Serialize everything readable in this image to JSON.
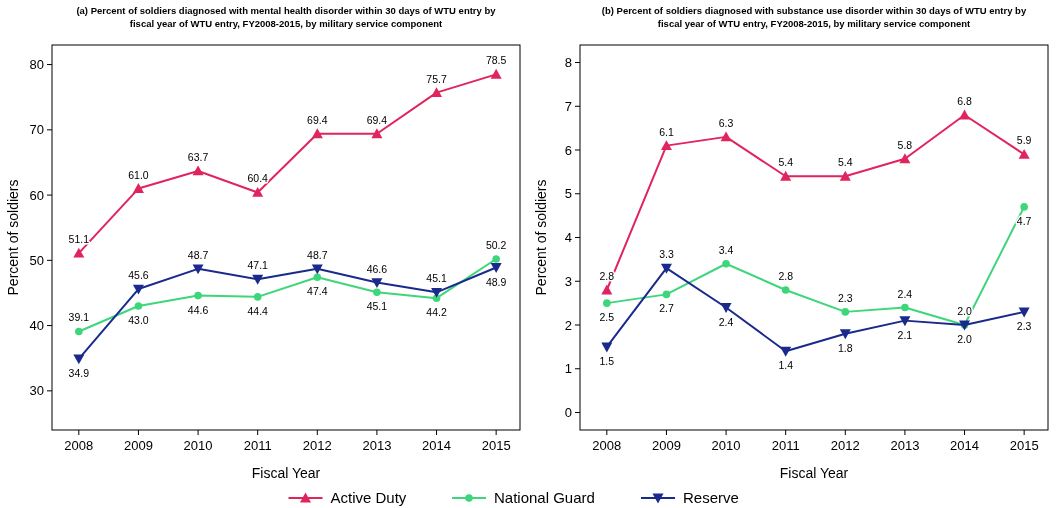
{
  "chart_data": [
    {
      "type": "line",
      "title": "(a) Percent of soldiers diagnosed with mental health disorder within 30 days of WTU entry by fiscal year of WTU entry, FY2008-2015, by military service component",
      "xlabel": "Fiscal Year",
      "ylabel": "Percent of soldiers",
      "x": [
        2008,
        2009,
        2010,
        2011,
        2012,
        2013,
        2014,
        2015
      ],
      "xlim": [
        2007.55,
        2015.4
      ],
      "xticks": [
        2008,
        2009,
        2010,
        2011,
        2012,
        2013,
        2014,
        2015
      ],
      "ylim": [
        24,
        83
      ],
      "yticks": [
        30,
        40,
        50,
        60,
        70,
        80
      ],
      "legend": "bottom",
      "series": [
        {
          "name": "Active Duty",
          "color": "#e0245e",
          "marker": "triangle",
          "values": [
            51.1,
            61.0,
            63.7,
            60.4,
            69.4,
            69.4,
            75.7,
            78.5
          ],
          "value_labels": [
            "51.1",
            "61.0",
            "63.7",
            "60.4",
            "69.4",
            "69.4",
            "75.7",
            "78.5"
          ]
        },
        {
          "name": "National Guard",
          "color": "#3dd67a",
          "marker": "circle",
          "values": [
            39.1,
            43.0,
            44.6,
            44.4,
            47.4,
            45.1,
            44.2,
            50.2
          ],
          "value_labels": [
            "39.1",
            "43.0",
            "44.6",
            "44.4",
            "47.4",
            "45.1",
            "44.2",
            "50.2"
          ]
        },
        {
          "name": "Reserve",
          "color": "#1a2a8c",
          "marker": "triangle-down",
          "values": [
            34.9,
            45.6,
            48.7,
            47.1,
            48.7,
            46.6,
            45.1,
            48.9
          ],
          "value_labels": [
            "34.9",
            "45.6",
            "48.7",
            "47.1",
            "48.7",
            "46.6",
            "45.1",
            "48.9"
          ]
        }
      ]
    },
    {
      "type": "line",
      "title": "(b) Percent of soldiers diagnosed with substance use disorder within 30 days of WTU entry by fiscal year of WTU entry, FY2008-2015, by military service component",
      "xlabel": "Fiscal Year",
      "ylabel": "Percent of soldiers",
      "x": [
        2008,
        2009,
        2010,
        2011,
        2012,
        2013,
        2014,
        2015
      ],
      "xlim": [
        2007.55,
        2015.4
      ],
      "xticks": [
        2008,
        2009,
        2010,
        2011,
        2012,
        2013,
        2014,
        2015
      ],
      "ylim": [
        -0.4,
        8.4
      ],
      "yticks": [
        0,
        1,
        2,
        3,
        4,
        5,
        6,
        7,
        8
      ],
      "series": [
        {
          "color": "#e0245e",
          "marker": "triangle",
          "values": [
            2.8,
            6.1,
            6.3,
            5.4,
            5.4,
            5.8,
            6.8,
            5.9
          ],
          "value_labels": [
            "2.8",
            "6.1",
            "6.3",
            "5.4",
            "5.4",
            "5.8",
            "6.8",
            "5.9"
          ]
        },
        {
          "color": "#3dd67a",
          "marker": "circle",
          "values": [
            2.5,
            2.7,
            3.4,
            2.8,
            2.3,
            2.4,
            2.0,
            4.7
          ],
          "value_labels": [
            "2.5",
            "2.7",
            "3.4",
            "2.8",
            "2.3",
            "2.4",
            "2.0",
            "4.7"
          ]
        },
        {
          "color": "#1a2a8c",
          "marker": "triangle-down",
          "values": [
            1.5,
            3.3,
            2.4,
            1.4,
            1.8,
            2.1,
            2.0,
            2.3
          ],
          "value_labels": [
            "1.5",
            "3.3",
            "2.4",
            "1.4",
            "1.8",
            "2.1",
            "2.0",
            "2.3"
          ]
        }
      ]
    }
  ]
}
